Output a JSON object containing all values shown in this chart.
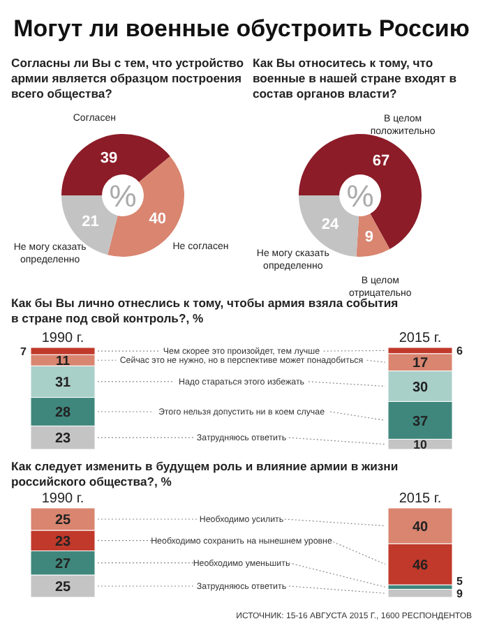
{
  "chart_data": [
    {
      "type": "donut",
      "title": "Могут ли военные обустроить Россию",
      "subtitle": "Согласны ли Вы с тем, что устройство армии является образцом построения всего общества?",
      "categories": [
        "Согласен",
        "Не согласен",
        "Не могу сказать определенно"
      ],
      "values": [
        39,
        40,
        21
      ],
      "colors": [
        "#8c1c28",
        "#d98570",
        "#c3c3c3"
      ],
      "data_labels": true,
      "annotations": [
        "%"
      ]
    },
    {
      "type": "donut",
      "title": "Как Вы относитесь к тому, что военные в нашей стране входят в состав органов власти?",
      "categories": [
        "В целом положительно",
        "В целом отрицательно",
        "Не могу сказать определенно"
      ],
      "values": [
        67,
        9,
        24
      ],
      "colors": [
        "#8c1c28",
        "#d98570",
        "#c3c3c3"
      ],
      "data_labels": true,
      "annotations": [
        "%"
      ]
    },
    {
      "type": "bar",
      "title": "Как бы Вы лично отнеслись к тому, чтобы армия взяла события в стране под свой контроль?, %",
      "categories": [
        "1990 г.",
        "2015 г."
      ],
      "stacked": true,
      "data_labels": true,
      "series": [
        {
          "name": "Затрудняюсь ответить",
          "color": "#c4c4c4",
          "values": [
            23,
            10
          ]
        },
        {
          "name": "Этого нельзя допустить ни в коем случае",
          "color": "#3f877d",
          "values": [
            28,
            37
          ]
        },
        {
          "name": "Надо стараться этого избежать",
          "color": "#a9cfc9",
          "values": [
            31,
            30
          ]
        },
        {
          "name": "Сейчас это не нужно, но в перспективе может понадобиться",
          "color": "#d98570",
          "values": [
            11,
            17
          ]
        },
        {
          "name": "Чем скорее это произойдет, тем лучше",
          "color": "#c0392b",
          "values": [
            7,
            6
          ]
        }
      ]
    },
    {
      "type": "bar",
      "title": "Как следует изменить в будущем роль и влияние армии в жизни российского общества?, %",
      "categories": [
        "1990 г.",
        "2015 г."
      ],
      "stacked": true,
      "data_labels": true,
      "series": [
        {
          "name": "Затрудняюсь ответить",
          "color": "#c4c4c4",
          "values": [
            25,
            9
          ]
        },
        {
          "name": "Необходимо уменьшить",
          "color": "#3f877d",
          "values": [
            27,
            5
          ]
        },
        {
          "name": "Необходимо сохранить на нынешнем уровне",
          "color": "#c0392b",
          "values": [
            23,
            46
          ]
        },
        {
          "name": "Необходимо усилить",
          "color": "#d98570",
          "values": [
            25,
            40
          ]
        }
      ],
      "annotations": [
        "ИСТОЧНИК: 15-16 АВГУСТА 2015 Г., 1600 РЕСПОНДЕНТОВ"
      ]
    }
  ]
}
